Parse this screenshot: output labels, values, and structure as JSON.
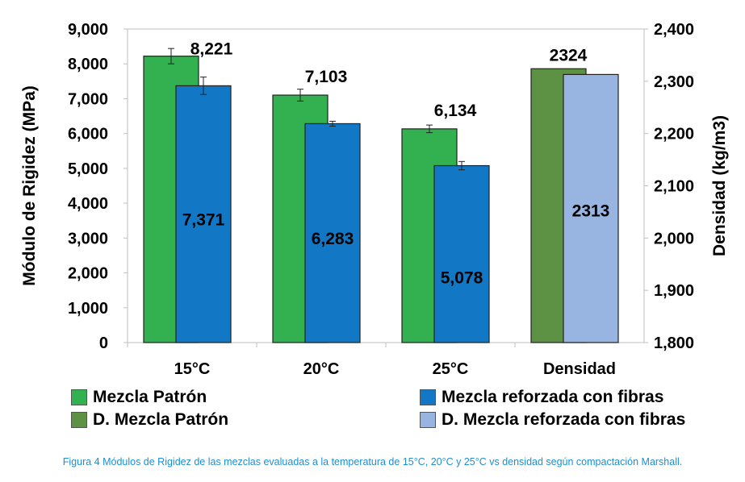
{
  "chart_data": {
    "type": "bar",
    "categories": [
      "15°C",
      "20°C",
      "25°C",
      "Densidad"
    ],
    "ylabel_left": "Módulo de Rigidez (MPa)",
    "ylabel_right": "Densidad (kg/m3)",
    "ylim_left": [
      0,
      9000
    ],
    "ylim_right": [
      1800,
      2400
    ],
    "yticks_left": [
      "0",
      "1,000",
      "2,000",
      "3,000",
      "4,000",
      "5,000",
      "6,000",
      "7,000",
      "8,000",
      "9,000"
    ],
    "yticks_right": [
      "1,800",
      "1,900",
      "2,000",
      "2,100",
      "2,200",
      "2,300",
      "2,400"
    ],
    "grid": false,
    "series": [
      {
        "name": "Mezcla Patrón",
        "axis": "left",
        "color": "#33b050",
        "values": [
          8221,
          7103,
          6134,
          null
        ],
        "labels": [
          "8,221",
          "7,103",
          "6,134",
          ""
        ],
        "errors": [
          220,
          170,
          110,
          null
        ]
      },
      {
        "name": "Mezcla reforzada con fibras",
        "axis": "left",
        "color": "#1277c4",
        "values": [
          7371,
          6283,
          5078,
          null
        ],
        "labels": [
          "7,371",
          "6,283",
          "5,078",
          ""
        ],
        "errors": [
          250,
          70,
          120,
          null
        ]
      },
      {
        "name": "D. Mezcla Patrón",
        "axis": "right",
        "color": "#5d9244",
        "values": [
          null,
          null,
          null,
          2324
        ],
        "labels": [
          "",
          "",
          "",
          "2324"
        ],
        "errors": [
          null,
          null,
          null,
          null
        ]
      },
      {
        "name": "D. Mezcla reforzada con fibras",
        "axis": "right",
        "color": "#98b4e0",
        "values": [
          null,
          null,
          null,
          2313
        ],
        "labels": [
          "",
          "",
          "",
          "2313"
        ],
        "errors": [
          null,
          null,
          null,
          null
        ]
      }
    ],
    "legend_position": "bottom"
  },
  "caption": "Figura 4 Módulos de Rigidez de las mezclas evaluadas a la temperatura de 15°C, 20°C y 25°C vs densidad según compactación Marshall."
}
